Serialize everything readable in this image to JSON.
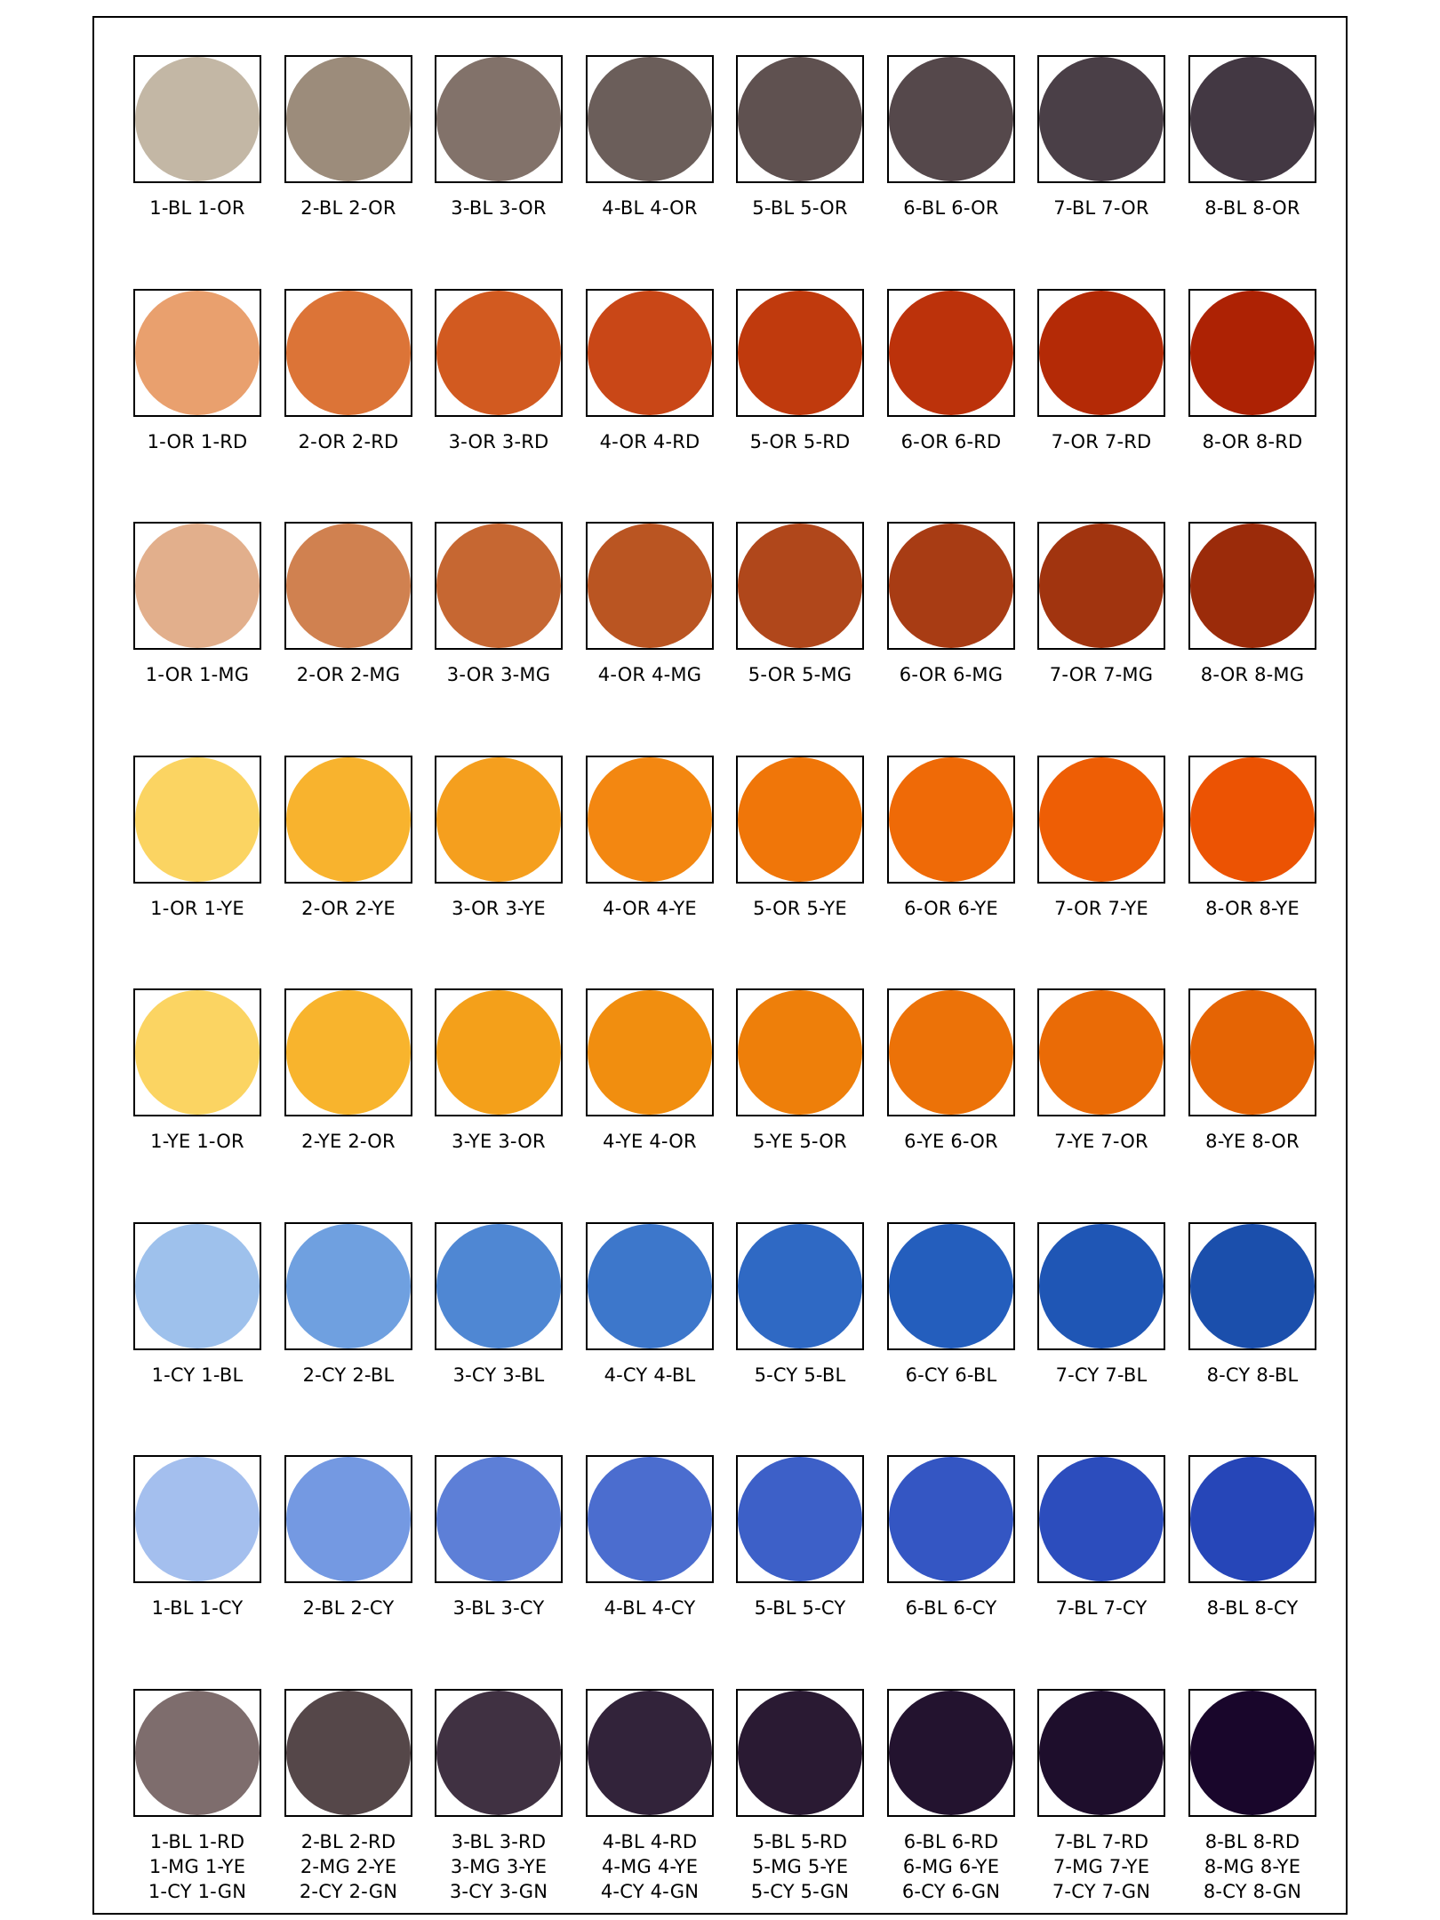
{
  "rows": [
    {
      "labels": [
        "1-BL 1-OR",
        "2-BL 2-OR",
        "3-BL 3-OR",
        "4-BL 4-OR",
        "5-BL 5-OR",
        "6-BL 6-OR",
        "7-BL 7-OR",
        "8-BL 8-OR"
      ],
      "colors": [
        "#c3b7a5",
        "#9c8c7b",
        "#82726a",
        "#6b5e5a",
        "#5f5150",
        "#55484b",
        "#4a3f47",
        "#433843"
      ]
    },
    {
      "labels": [
        "1-OR 1-RD",
        "2-OR 2-RD",
        "3-OR 3-RD",
        "4-OR 4-RD",
        "5-OR 5-RD",
        "6-OR 6-RD",
        "7-OR 7-RD",
        "8-OR 8-RD"
      ],
      "colors": [
        "#e9a06e",
        "#dc7437",
        "#d25a20",
        "#c94717",
        "#c03a0d",
        "#bc320b",
        "#b42a06",
        "#ad2204"
      ]
    },
    {
      "labels": [
        "1-OR 1-MG",
        "2-OR 2-MG",
        "3-OR 3-MG",
        "4-OR 4-MG",
        "5-OR 5-MG",
        "6-OR 6-MG",
        "7-OR 7-MG",
        "8-OR 8-MG"
      ],
      "colors": [
        "#e2af8c",
        "#d08150",
        "#c66732",
        "#ba5522",
        "#b0471b",
        "#a83c14",
        "#a1340f",
        "#9b2b0a"
      ]
    },
    {
      "labels": [
        "1-OR 1-YE",
        "2-OR 2-YE",
        "3-OR 3-YE",
        "4-OR 4-YE",
        "5-OR 5-YE",
        "6-OR 6-YE",
        "7-OR 7-YE",
        "8-OR 8-YE"
      ],
      "colors": [
        "#fbd462",
        "#f8b32e",
        "#f59f1e",
        "#f38711",
        "#f07609",
        "#ef6a07",
        "#ee5e05",
        "#ec5303"
      ]
    },
    {
      "labels": [
        "1-YE 1-OR",
        "2-YE 2-OR",
        "3-YE 3-OR",
        "4-YE 4-OR",
        "5-YE 5-OR",
        "6-YE 6-OR",
        "7-YE 7-OR",
        "8-YE 8-OR"
      ],
      "colors": [
        "#fbd462",
        "#f8b42d",
        "#f4a01a",
        "#f18e0f",
        "#ee7f0a",
        "#ec7208",
        "#ea6b06",
        "#e56404"
      ]
    },
    {
      "labels": [
        "1-CY 1-BL",
        "2-CY 2-BL",
        "3-CY 3-BL",
        "4-CY 4-BL",
        "5-CY 5-BL",
        "6-CY 6-BL",
        "7-CY 7-BL",
        "8-CY 8-BL"
      ],
      "colors": [
        "#9ec1ec",
        "#6fa0e0",
        "#4f87d3",
        "#3d77cb",
        "#2f69c4",
        "#245ebd",
        "#1f56b5",
        "#1b4fac"
      ]
    },
    {
      "labels": [
        "1-BL 1-CY",
        "2-BL 2-CY",
        "3-BL 3-CY",
        "4-BL 4-CY",
        "5-BL 5-CY",
        "6-BL 6-CY",
        "7-BL 7-CY",
        "8-BL 8-CY"
      ],
      "colors": [
        "#a4bfee",
        "#7499e2",
        "#5d7fd7",
        "#4b6dcf",
        "#3d60c8",
        "#3456c3",
        "#2c4dbd",
        "#2646b8"
      ]
    },
    {
      "labels": [
        [
          "1-BL 1-RD",
          "1-MG 1-YE",
          "1-CY 1-GN"
        ],
        [
          "2-BL 2-RD",
          "2-MG 2-YE",
          "2-CY 2-GN"
        ],
        [
          "3-BL 3-RD",
          "3-MG 3-YE",
          "3-CY 3-GN"
        ],
        [
          "4-BL 4-RD",
          "4-MG 4-YE",
          "4-CY 4-GN"
        ],
        [
          "5-BL 5-RD",
          "5-MG 5-YE",
          "5-CY 5-GN"
        ],
        [
          "6-BL 6-RD",
          "6-MG 6-YE",
          "6-CY 6-GN"
        ],
        [
          "7-BL 7-RD",
          "7-MG 7-YE",
          "7-CY 7-GN"
        ],
        [
          "8-BL 8-RD",
          "8-MG 8-YE",
          "8-CY 8-GN"
        ]
      ],
      "colors": [
        "#7e6d6d",
        "#554749",
        "#403142",
        "#32233a",
        "#2a1a33",
        "#23132f",
        "#1e0e2c",
        "#19062b"
      ]
    }
  ]
}
